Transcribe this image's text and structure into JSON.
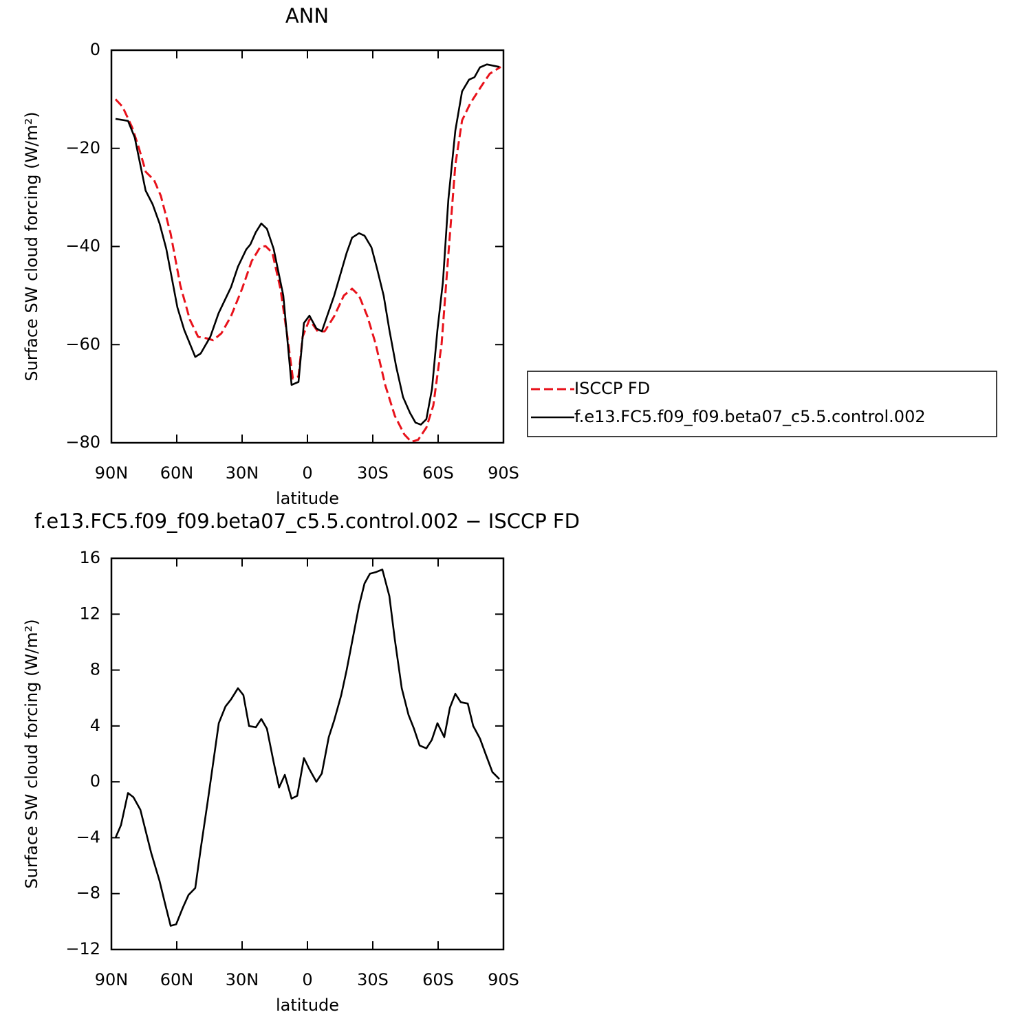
{
  "chart_data": [
    {
      "type": "line",
      "title": "ANN",
      "xlabel": "latitude",
      "ylabel": "Surface SW cloud forcing (W/m²)",
      "xlim": [
        90,
        -90
      ],
      "xticks": [
        {
          "value": 90,
          "label": "90N"
        },
        {
          "value": 60,
          "label": "60N"
        },
        {
          "value": 30,
          "label": "30N"
        },
        0,
        {
          "value": -30,
          "label": "30S"
        },
        {
          "value": -60,
          "label": "60S"
        },
        {
          "value": -90,
          "label": "90S"
        }
      ],
      "ylim": [
        -80,
        0
      ],
      "yticks": [
        0,
        {
          "value": -20,
          "label": "−20"
        },
        {
          "value": -40,
          "label": "−40"
        },
        {
          "value": -60,
          "label": "−60"
        },
        {
          "value": -80,
          "label": "−80"
        }
      ],
      "legend": "right",
      "series": [
        {
          "name": "ISCCP FD",
          "color": "#e8121b",
          "dash": true,
          "x": [
            88.1,
            84.9,
            80.5,
            77.4,
            74.2,
            70.4,
            67.3,
            62.8,
            58.4,
            54,
            50.2,
            46.4,
            43.3,
            39.5,
            35.1,
            30,
            25.6,
            21.8,
            19.3,
            16.1,
            12.4,
            9.2,
            6.7,
            4.1,
            2.2,
            -0.9,
            -4.7,
            -7.9,
            -12.3,
            -16.7,
            -20.5,
            -23.7,
            -27.5,
            -31.3,
            -35.7,
            -40.1,
            -44.5,
            -47.7,
            -50.8,
            -54.6,
            -57.8,
            -61.6,
            -64.7,
            -67.9,
            -71,
            -74.8,
            -79.9,
            -83.7,
            -88.7
          ],
          "values": [
            -10,
            -11.5,
            -15.7,
            -19.9,
            -24.8,
            -26.5,
            -29.7,
            -37.4,
            -47.9,
            -54.9,
            -58.4,
            -58.7,
            -59.1,
            -57.7,
            -54.2,
            -48.6,
            -43,
            -40.2,
            -39.9,
            -41.3,
            -48.6,
            -58.4,
            -66.9,
            -66.5,
            -58.4,
            -54.9,
            -57.3,
            -57.3,
            -54.2,
            -50,
            -48.6,
            -50,
            -54.2,
            -59.8,
            -68.2,
            -74.5,
            -78.3,
            -79.8,
            -79.4,
            -76.9,
            -72.4,
            -59.8,
            -41.6,
            -23.4,
            -14.3,
            -10.8,
            -7.3,
            -4.8,
            -3.4
          ]
        },
        {
          "name": "f.e13.FC5.f09_f09.beta07_c5.5.control.002",
          "color": "#000000",
          "dash": false,
          "x": [
            88.1,
            82.4,
            79.3,
            74.3,
            71.1,
            67.9,
            64.8,
            59.7,
            56.6,
            51.5,
            49,
            44.6,
            40.8,
            35.1,
            31.9,
            28.1,
            26.2,
            23.7,
            21.2,
            18.6,
            15.5,
            11.1,
            7.3,
            4.1,
            1.6,
            -0.9,
            -4.1,
            -6.6,
            -12.3,
            -18,
            -20.5,
            -23.7,
            -26.2,
            -29.4,
            -31.9,
            -35,
            -37.6,
            -40.7,
            -43.9,
            -47.1,
            -49.6,
            -52.1,
            -54.6,
            -57.2,
            -59.7,
            -62.2,
            -64.7,
            -67.9,
            -71,
            -74.2,
            -76.7,
            -79.2,
            -82.4,
            -88.1
          ],
          "values": [
            -14,
            -14.4,
            -17.8,
            -28.6,
            -31.4,
            -35.3,
            -40.5,
            -52.4,
            -57,
            -62.5,
            -61.8,
            -58.4,
            -53.6,
            -48.3,
            -44.1,
            -40.6,
            -39.6,
            -37.1,
            -35.3,
            -36.4,
            -40.5,
            -50,
            -68.2,
            -67.6,
            -55.6,
            -54.1,
            -56.7,
            -57.3,
            -50,
            -41.3,
            -38.2,
            -37.3,
            -37.8,
            -40.2,
            -44.4,
            -50,
            -57,
            -64.4,
            -70.7,
            -73.9,
            -75.9,
            -76.3,
            -75.2,
            -69,
            -57,
            -47.2,
            -30.4,
            -16.4,
            -8.4,
            -6,
            -5.5,
            -3.5,
            -2.9,
            -3.4
          ]
        }
      ]
    },
    {
      "type": "line",
      "title": "f.e13.FC5.f09_f09.beta07_c5.5.control.002 − ISCCP FD",
      "xlabel": "latitude",
      "ylabel": "Surface SW cloud forcing (W/m²)",
      "xlim": [
        90,
        -90
      ],
      "xticks": [
        {
          "value": 90,
          "label": "90N"
        },
        {
          "value": 60,
          "label": "60N"
        },
        {
          "value": 30,
          "label": "30N"
        },
        0,
        {
          "value": -30,
          "label": "30S"
        },
        {
          "value": -60,
          "label": "60S"
        },
        {
          "value": -90,
          "label": "90S"
        }
      ],
      "ylim": [
        -12,
        16
      ],
      "yticks": [
        16,
        12,
        8,
        4,
        0,
        {
          "value": -4,
          "label": "−4"
        },
        {
          "value": -8,
          "label": "−8"
        },
        {
          "value": -12,
          "label": "−12"
        }
      ],
      "series": [
        {
          "color": "#000000",
          "dash": false,
          "x": [
            88.1,
            85.6,
            82.4,
            79.9,
            76.7,
            71.7,
            67.9,
            65.4,
            62.8,
            60.3,
            57.2,
            54.6,
            51.5,
            49,
            45.8,
            40.7,
            37.6,
            35.1,
            31.9,
            29.4,
            26.8,
            23.7,
            21.2,
            18.6,
            15.5,
            13,
            10.4,
            7.3,
            4.7,
            1.6,
            -0.9,
            -4.1,
            -6.6,
            -9.8,
            -12.3,
            -15.5,
            -18,
            -21.1,
            -23.7,
            -26.2,
            -28.7,
            -31.3,
            -34.4,
            -37.6,
            -40.1,
            -43.3,
            -46.4,
            -48.9,
            -51.5,
            -54.6,
            -57.1,
            -59.7,
            -62.8,
            -65.4,
            -67.9,
            -70.4,
            -73.6,
            -76.1,
            -79.2,
            -81.8,
            -84.9,
            -88.1
          ],
          "values": [
            -4,
            -3.1,
            -0.8,
            -1.1,
            -2,
            -5.1,
            -7.1,
            -8.7,
            -10.3,
            -10.2,
            -9,
            -8.1,
            -7.6,
            -4.8,
            -1.4,
            4.2,
            5.4,
            5.9,
            6.7,
            6.2,
            4,
            3.9,
            4.5,
            3.8,
            1.4,
            -0.4,
            0.5,
            -1.2,
            -1,
            1.7,
            0.9,
            0,
            0.6,
            3.2,
            4.4,
            6.2,
            8,
            10.5,
            12.6,
            14.2,
            14.9,
            15,
            15.2,
            13.3,
            10.2,
            6.7,
            4.8,
            3.8,
            2.6,
            2.4,
            3,
            4.2,
            3.2,
            5.3,
            6.3,
            5.7,
            5.6,
            4,
            3.1,
            2,
            0.7,
            0.2
          ]
        }
      ]
    }
  ]
}
